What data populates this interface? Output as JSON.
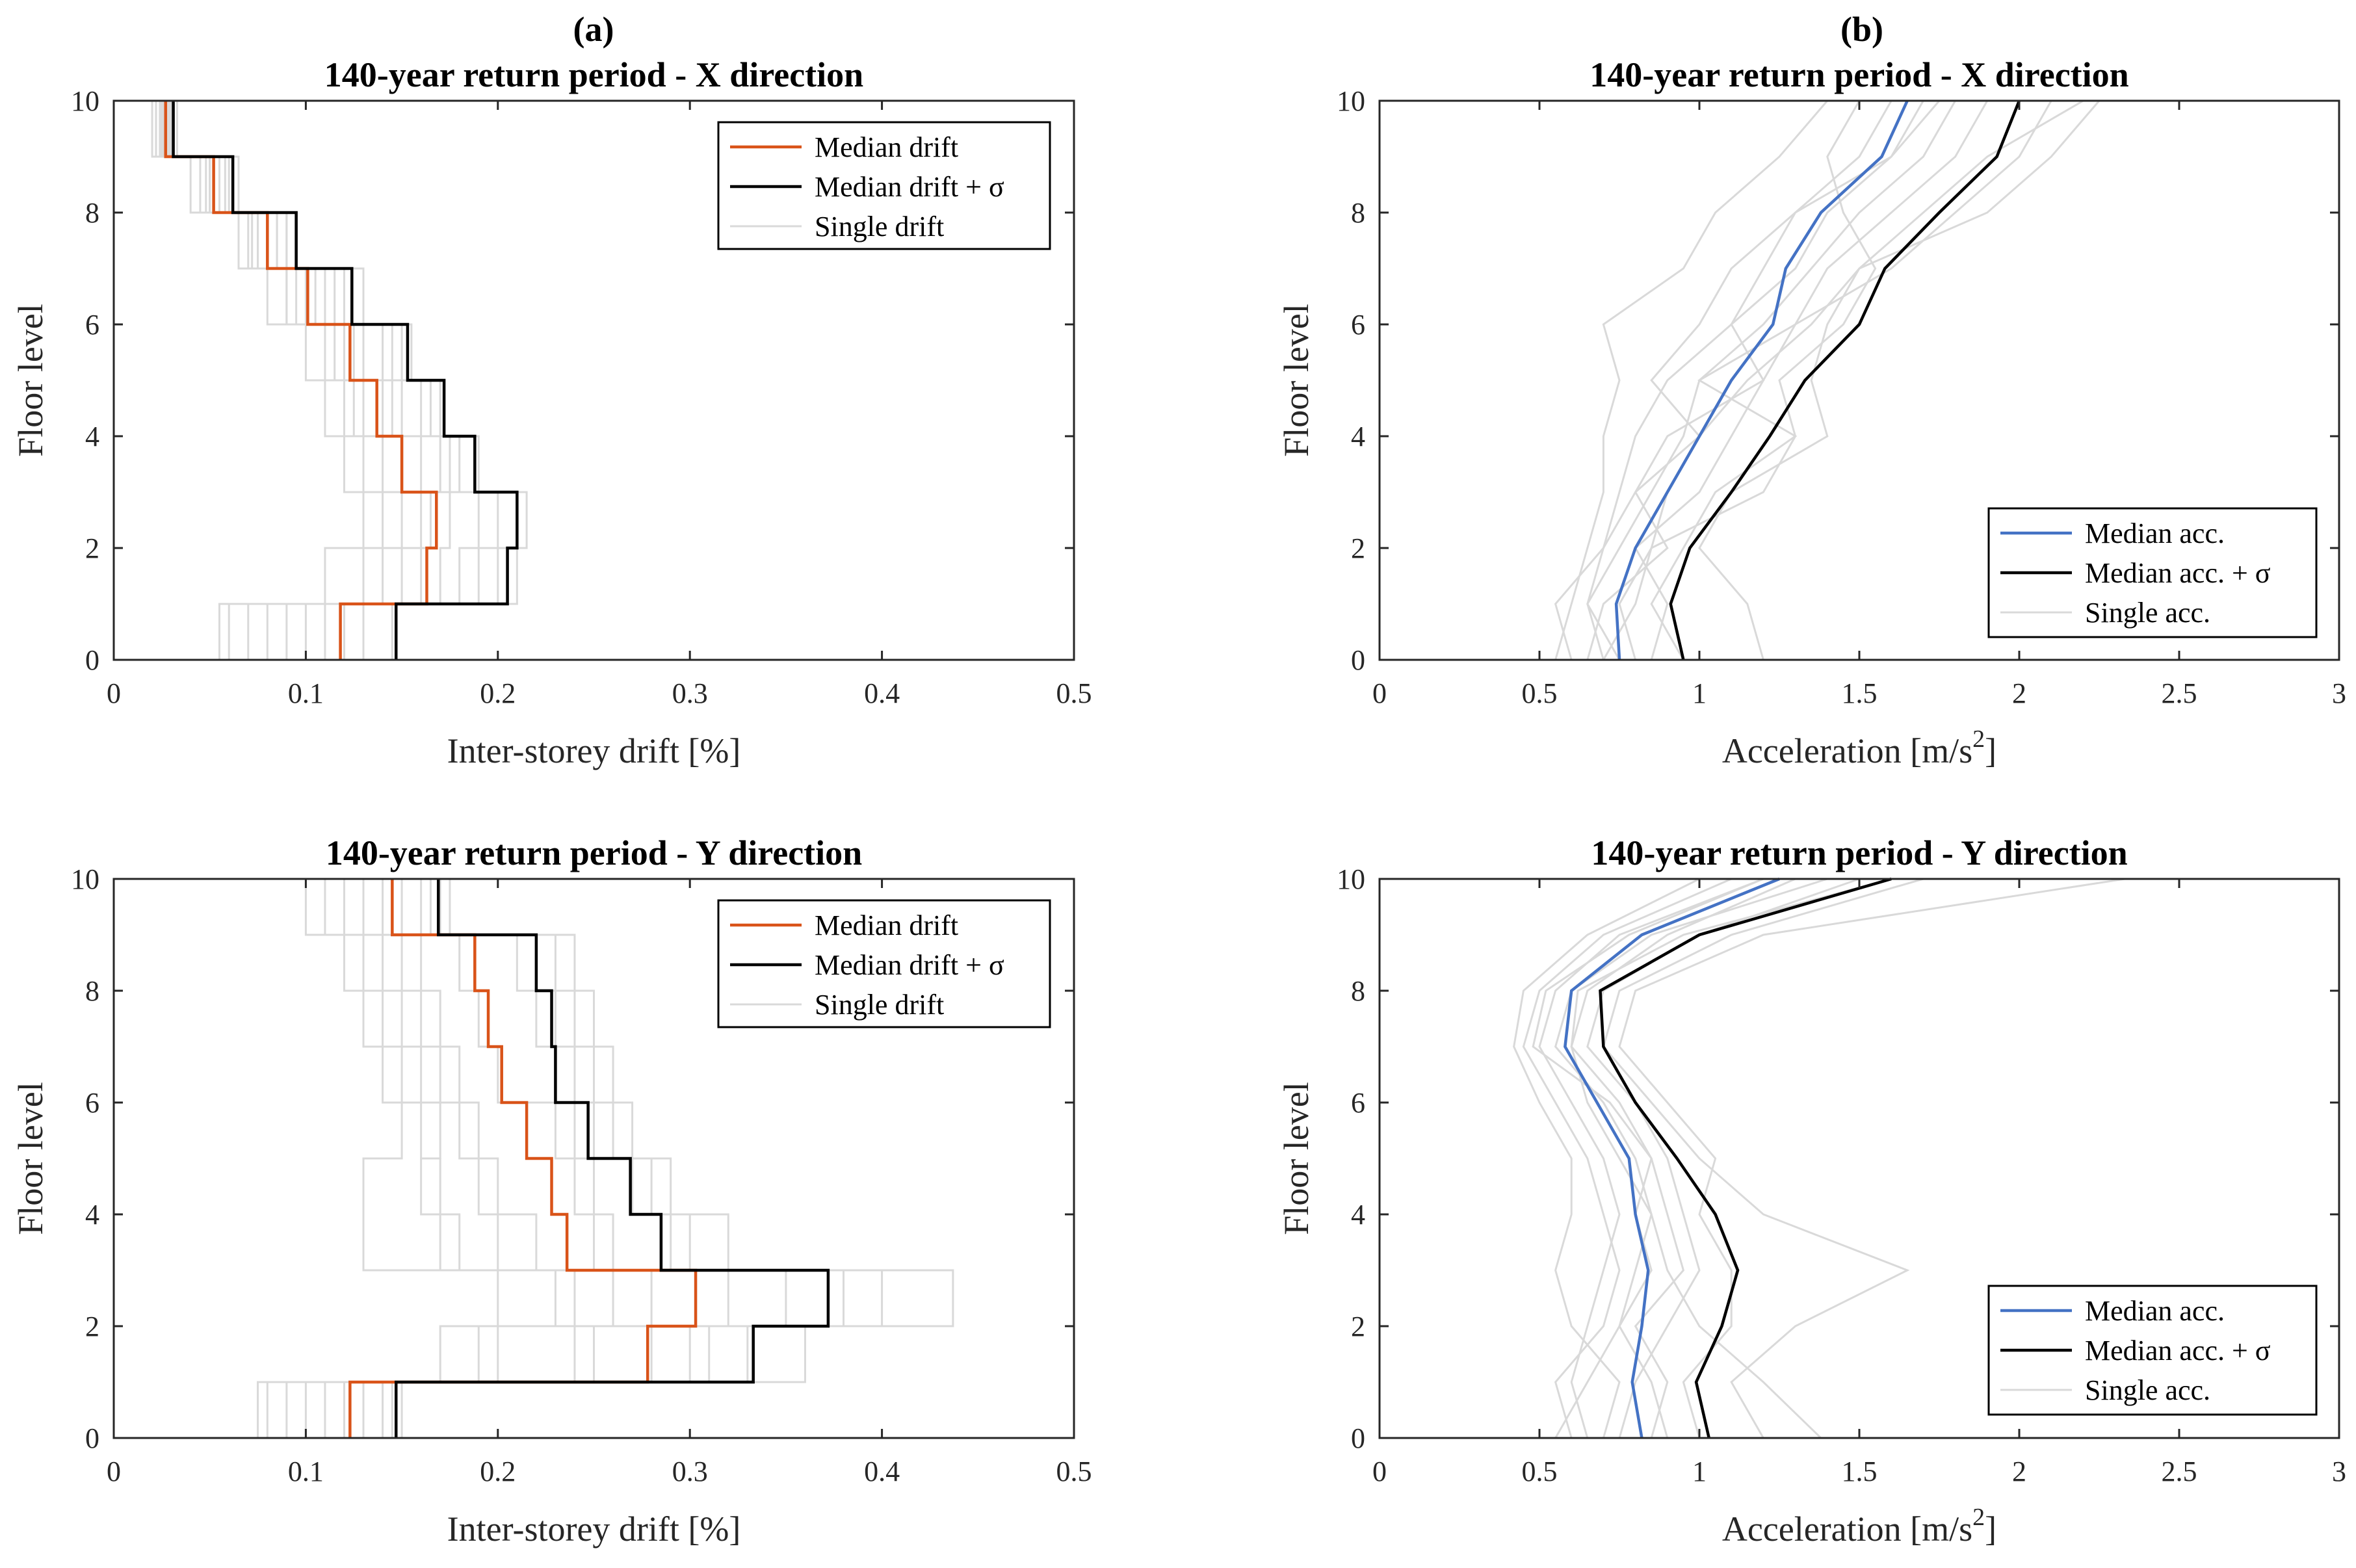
{
  "figure": {
    "panel_labels": [
      "(a)",
      "(b)"
    ],
    "colors": {
      "median_drift": "#D95319",
      "median_acc": "#4472C4",
      "plus_sigma": "#000000",
      "single": "#D9D9D9",
      "axis": "#262626"
    }
  },
  "chart_data": [
    {
      "type": "line",
      "subtype": "stairs",
      "title": "140-year return period - X direction",
      "xlabel": "Inter-storey drift [%]",
      "ylabel": "Floor level",
      "xlim": [
        0,
        0.5
      ],
      "ylim": [
        0,
        10
      ],
      "xticks": [
        "0",
        "0.1",
        "0.2",
        "0.3",
        "0.4",
        "0.5"
      ],
      "yticks": [
        "0",
        "2",
        "4",
        "6",
        "8",
        "10"
      ],
      "legend": {
        "position": "top-right",
        "entries": [
          "Median drift",
          "Median drift + σ",
          "Single drift"
        ]
      },
      "floors": [
        0,
        1,
        2,
        3,
        4,
        5,
        6,
        7,
        8,
        9,
        10
      ],
      "series": [
        {
          "name": "Median drift",
          "values": [
            0.118,
            0.163,
            0.168,
            0.15,
            0.137,
            0.123,
            0.101,
            0.08,
            0.052,
            0.027
          ]
        },
        {
          "name": "Median drift + σ",
          "values": [
            0.147,
            0.205,
            0.21,
            0.188,
            0.172,
            0.153,
            0.124,
            0.095,
            0.062,
            0.031
          ]
        }
      ],
      "single": [
        [
          0.06,
          0.13,
          0.14,
          0.13,
          0.12,
          0.11,
          0.09,
          0.07,
          0.04,
          0.02
        ],
        [
          0.08,
          0.18,
          0.19,
          0.17,
          0.15,
          0.14,
          0.11,
          0.09,
          0.055,
          0.028
        ],
        [
          0.1,
          0.15,
          0.16,
          0.14,
          0.13,
          0.12,
          0.095,
          0.075,
          0.05,
          0.025
        ],
        [
          0.13,
          0.2,
          0.21,
          0.18,
          0.16,
          0.15,
          0.12,
          0.085,
          0.058,
          0.03
        ],
        [
          0.055,
          0.11,
          0.13,
          0.12,
          0.11,
          0.1,
          0.08,
          0.065,
          0.045,
          0.022
        ],
        [
          0.145,
          0.21,
          0.215,
          0.19,
          0.17,
          0.155,
          0.13,
          0.095,
          0.065,
          0.033
        ],
        [
          0.09,
          0.14,
          0.15,
          0.14,
          0.125,
          0.115,
          0.1,
          0.08,
          0.05,
          0.026
        ],
        [
          0.12,
          0.17,
          0.175,
          0.16,
          0.145,
          0.13,
          0.105,
          0.085,
          0.055,
          0.029
        ],
        [
          0.07,
          0.16,
          0.165,
          0.15,
          0.14,
          0.125,
          0.09,
          0.072,
          0.048,
          0.024
        ],
        [
          0.11,
          0.19,
          0.2,
          0.175,
          0.165,
          0.145,
          0.115,
          0.09,
          0.06,
          0.03
        ]
      ]
    },
    {
      "type": "line",
      "title": "140-year return period - X direction",
      "xlabel": "Acceleration [m/s",
      "xlabel_sup": "2",
      "xlabel_end": "]",
      "ylabel": "Floor level",
      "xlim": [
        0,
        3
      ],
      "ylim": [
        0,
        10
      ],
      "xticks": [
        "0",
        "0.5",
        "1",
        "1.5",
        "2",
        "2.5",
        "3"
      ],
      "yticks": [
        "0",
        "2",
        "4",
        "6",
        "8",
        "10"
      ],
      "legend": {
        "position": "bottom-right",
        "entries": [
          "Median acc.",
          "Median acc. + σ",
          "Single acc."
        ]
      },
      "floors": [
        0,
        1,
        2,
        3,
        4,
        5,
        6,
        7,
        8,
        9,
        10
      ],
      "series": [
        {
          "name": "Median acc.",
          "values": [
            0.75,
            0.74,
            0.8,
            0.9,
            1.0,
            1.1,
            1.23,
            1.27,
            1.38,
            1.57,
            1.65
          ]
        },
        {
          "name": "Median acc. + σ",
          "values": [
            0.95,
            0.91,
            0.97,
            1.1,
            1.22,
            1.33,
            1.5,
            1.58,
            1.75,
            1.93,
            2.0
          ]
        }
      ],
      "single": [
        [
          0.6,
          0.55,
          0.7,
          0.75,
          0.8,
          0.9,
          1.1,
          1.2,
          1.3,
          1.5,
          1.6
        ],
        [
          0.7,
          0.65,
          0.75,
          0.85,
          0.95,
          1.0,
          1.2,
          1.35,
          1.5,
          1.7,
          1.8
        ],
        [
          0.85,
          0.9,
          0.8,
          1.0,
          1.1,
          1.2,
          1.3,
          1.4,
          1.6,
          1.8,
          1.9
        ],
        [
          1.2,
          1.15,
          1.0,
          1.1,
          1.4,
          1.35,
          1.4,
          1.5,
          1.7,
          1.9,
          2.2
        ],
        [
          0.65,
          0.7,
          0.9,
          0.8,
          0.9,
          1.2,
          1.1,
          1.3,
          1.4,
          1.6,
          1.7
        ],
        [
          0.55,
          0.6,
          0.65,
          0.7,
          0.7,
          0.75,
          0.7,
          0.95,
          1.05,
          1.25,
          1.4
        ],
        [
          0.95,
          0.85,
          0.95,
          1.05,
          1.3,
          1.0,
          1.3,
          1.6,
          1.8,
          2.0,
          2.1
        ],
        [
          0.8,
          0.75,
          0.85,
          1.2,
          1.3,
          1.25,
          1.45,
          1.55,
          1.45,
          1.4,
          1.5
        ],
        [
          0.7,
          0.8,
          0.85,
          0.9,
          1.0,
          1.15,
          1.35,
          1.5,
          1.9,
          2.1,
          2.25
        ],
        [
          0.75,
          0.65,
          0.7,
          0.8,
          1.0,
          0.85,
          1.0,
          1.1,
          1.3,
          1.6,
          1.75
        ]
      ]
    },
    {
      "type": "line",
      "subtype": "stairs",
      "title": "140-year return period - Y direction",
      "xlabel": "Inter-storey drift [%]",
      "ylabel": "Floor level",
      "xlim": [
        0,
        0.5
      ],
      "ylim": [
        0,
        10
      ],
      "xticks": [
        "0",
        "0.1",
        "0.2",
        "0.3",
        "0.4",
        "0.5"
      ],
      "yticks": [
        "0",
        "2",
        "4",
        "6",
        "8",
        "10"
      ],
      "legend": {
        "position": "top-right",
        "entries": [
          "Median drift",
          "Median drift + σ",
          "Single drift"
        ]
      },
      "floors": [
        0,
        1,
        2,
        3,
        4,
        5,
        6,
        7,
        8,
        9,
        10
      ],
      "series": [
        {
          "name": "Median drift",
          "values": [
            0.123,
            0.278,
            0.303,
            0.236,
            0.228,
            0.215,
            0.202,
            0.195,
            0.188,
            0.145
          ]
        },
        {
          "name": "Median drift + σ",
          "values": [
            0.147,
            0.333,
            0.372,
            0.285,
            0.269,
            0.247,
            0.23,
            0.228,
            0.22,
            0.169
          ]
        }
      ],
      "single": [
        [
          0.075,
          0.2,
          0.23,
          0.18,
          0.17,
          0.16,
          0.15,
          0.14,
          0.13,
          0.12
        ],
        [
          0.1,
          0.25,
          0.28,
          0.22,
          0.2,
          0.19,
          0.18,
          0.17,
          0.16,
          0.13
        ],
        [
          0.14,
          0.3,
          0.35,
          0.26,
          0.25,
          0.24,
          0.23,
          0.22,
          0.21,
          0.16
        ],
        [
          0.09,
          0.33,
          0.4,
          0.3,
          0.28,
          0.26,
          0.25,
          0.24,
          0.23,
          0.17
        ],
        [
          0.15,
          0.36,
          0.437,
          0.32,
          0.29,
          0.27,
          0.26,
          0.25,
          0.24,
          0.175
        ],
        [
          0.11,
          0.17,
          0.2,
          0.13,
          0.13,
          0.15,
          0.14,
          0.13,
          0.12,
          0.1
        ],
        [
          0.13,
          0.24,
          0.26,
          0.2,
          0.19,
          0.18,
          0.17,
          0.16,
          0.15,
          0.14
        ],
        [
          0.12,
          0.28,
          0.32,
          0.25,
          0.24,
          0.23,
          0.2,
          0.19,
          0.18,
          0.15
        ],
        [
          0.08,
          0.19,
          0.24,
          0.17,
          0.16,
          0.17,
          0.16,
          0.15,
          0.14,
          0.11
        ],
        [
          0.145,
          0.31,
          0.38,
          0.29,
          0.27,
          0.25,
          0.24,
          0.23,
          0.22,
          0.165
        ]
      ]
    },
    {
      "type": "line",
      "title": "140-year return period - Y direction",
      "xlabel": "Acceleration [m/s",
      "xlabel_sup": "2",
      "xlabel_end": "]",
      "ylabel": "Floor level",
      "xlim": [
        0,
        3
      ],
      "ylim": [
        0,
        10
      ],
      "xticks": [
        "0",
        "0.5",
        "1",
        "1.5",
        "2",
        "2.5",
        "3"
      ],
      "yticks": [
        "0",
        "2",
        "4",
        "6",
        "8",
        "10"
      ],
      "legend": {
        "position": "bottom-right",
        "entries": [
          "Median acc.",
          "Median acc. + σ",
          "Single acc."
        ]
      },
      "floors": [
        0,
        1,
        2,
        3,
        4,
        5,
        6,
        7,
        8,
        9,
        10
      ],
      "series": [
        {
          "name": "Median acc.",
          "values": [
            0.82,
            0.79,
            0.82,
            0.84,
            0.8,
            0.78,
            0.68,
            0.58,
            0.6,
            0.82,
            1.25
          ]
        },
        {
          "name": "Median acc. + σ",
          "values": [
            1.03,
            0.99,
            1.07,
            1.12,
            1.05,
            0.93,
            0.8,
            0.7,
            0.69,
            1.0,
            1.6
          ]
        }
      ],
      "single": [
        [
          0.6,
          0.55,
          0.7,
          0.75,
          0.7,
          0.65,
          0.55,
          0.45,
          0.5,
          0.7,
          1.1
        ],
        [
          0.85,
          0.9,
          0.8,
          0.95,
          0.9,
          0.85,
          0.75,
          0.6,
          0.65,
          0.9,
          1.3
        ],
        [
          1.2,
          1.1,
          1.3,
          1.65,
          1.2,
          1.0,
          0.85,
          0.7,
          0.75,
          1.1,
          1.7
        ],
        [
          0.7,
          0.75,
          0.6,
          0.55,
          0.6,
          0.6,
          0.5,
          0.42,
          0.45,
          0.65,
          1.0
        ],
        [
          1.0,
          0.95,
          1.1,
          1.1,
          1.0,
          1.05,
          0.9,
          0.75,
          0.8,
          1.2,
          2.33
        ],
        [
          0.65,
          0.6,
          0.65,
          0.7,
          0.75,
          0.7,
          0.6,
          0.5,
          0.55,
          0.75,
          1.2
        ],
        [
          1.38,
          1.2,
          1.0,
          0.9,
          0.85,
          0.8,
          0.7,
          0.55,
          0.6,
          0.85,
          1.4
        ],
        [
          0.75,
          0.8,
          0.9,
          1.0,
          0.95,
          0.9,
          0.8,
          0.65,
          0.7,
          1.0,
          1.5
        ],
        [
          0.9,
          0.85,
          0.75,
          0.8,
          0.85,
          0.75,
          0.65,
          0.6,
          0.62,
          0.95,
          1.6
        ],
        [
          0.55,
          0.65,
          0.75,
          0.85,
          0.8,
          0.85,
          0.72,
          0.48,
          0.52,
          0.78,
          1.2
        ]
      ]
    }
  ]
}
